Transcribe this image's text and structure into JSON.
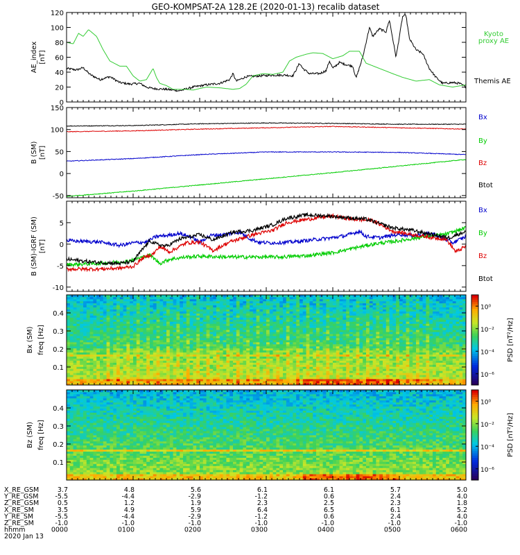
{
  "title": "GEO-KOMPSAT-2A 128.2E (2020-01-13) recalib dataset",
  "colors": {
    "black": "#000000",
    "blue": "#0000cc",
    "green": "#00cc00",
    "red": "#dd0000",
    "kyoto": "#33cc33"
  },
  "chart_data": [
    {
      "id": "ae",
      "type": "line",
      "ylabel": [
        "AE_index",
        "[nT]"
      ],
      "ylim": [
        0,
        120
      ],
      "yticks": [
        "0",
        "20",
        "40",
        "60",
        "80",
        "100",
        "120"
      ],
      "x_range_hours": [
        0,
        6
      ],
      "series": [
        {
          "name": "Themis AE",
          "color": "#000000",
          "points": [
            [
              0,
              45
            ],
            [
              0.15,
              43
            ],
            [
              0.25,
              46
            ],
            [
              0.35,
              37
            ],
            [
              0.5,
              30
            ],
            [
              0.65,
              34
            ],
            [
              0.8,
              26
            ],
            [
              0.95,
              24
            ],
            [
              1.1,
              25
            ],
            [
              1.2,
              20
            ],
            [
              1.3,
              18
            ],
            [
              1.5,
              17
            ],
            [
              1.7,
              15
            ],
            [
              1.9,
              20
            ],
            [
              2.1,
              23
            ],
            [
              2.3,
              25
            ],
            [
              2.45,
              30
            ],
            [
              2.5,
              38
            ],
            [
              2.55,
              28
            ],
            [
              2.7,
              34
            ],
            [
              2.9,
              35
            ],
            [
              3.1,
              36
            ],
            [
              3.3,
              36
            ],
            [
              3.4,
              35
            ],
            [
              3.5,
              52
            ],
            [
              3.55,
              45
            ],
            [
              3.65,
              38
            ],
            [
              3.8,
              38
            ],
            [
              3.9,
              42
            ],
            [
              3.95,
              55
            ],
            [
              4.0,
              45
            ],
            [
              4.1,
              53
            ],
            [
              4.2,
              50
            ],
            [
              4.3,
              48
            ],
            [
              4.35,
              32
            ],
            [
              4.45,
              60
            ],
            [
              4.55,
              100
            ],
            [
              4.6,
              88
            ],
            [
              4.7,
              98
            ],
            [
              4.8,
              94
            ],
            [
              4.85,
              110
            ],
            [
              4.95,
              60
            ],
            [
              5.05,
              115
            ],
            [
              5.1,
              116
            ],
            [
              5.15,
              85
            ],
            [
              5.25,
              70
            ],
            [
              5.35,
              65
            ],
            [
              5.45,
              45
            ],
            [
              5.55,
              33
            ],
            [
              5.65,
              25
            ],
            [
              5.8,
              26
            ],
            [
              5.9,
              25
            ],
            [
              6.0,
              20
            ]
          ]
        },
        {
          "name": "Kyoto proxy AE",
          "color": "#33cc33",
          "points": [
            [
              0,
              80
            ],
            [
              0.1,
              78
            ],
            [
              0.18,
              92
            ],
            [
              0.25,
              88
            ],
            [
              0.33,
              97
            ],
            [
              0.45,
              88
            ],
            [
              0.55,
              70
            ],
            [
              0.65,
              55
            ],
            [
              0.8,
              48
            ],
            [
              0.9,
              48
            ],
            [
              1.0,
              35
            ],
            [
              1.1,
              28
            ],
            [
              1.2,
              30
            ],
            [
              1.3,
              45
            ],
            [
              1.35,
              33
            ],
            [
              1.4,
              25
            ],
            [
              1.5,
              22
            ],
            [
              1.6,
              17
            ],
            [
              1.8,
              17
            ],
            [
              1.9,
              16
            ],
            [
              2.1,
              20
            ],
            [
              2.3,
              19
            ],
            [
              2.5,
              17
            ],
            [
              2.6,
              18
            ],
            [
              2.7,
              24
            ],
            [
              2.8,
              35
            ],
            [
              2.95,
              38
            ],
            [
              3.1,
              37
            ],
            [
              3.25,
              40
            ],
            [
              3.35,
              55
            ],
            [
              3.45,
              60
            ],
            [
              3.6,
              64
            ],
            [
              3.7,
              66
            ],
            [
              3.85,
              65
            ],
            [
              4.0,
              58
            ],
            [
              4.15,
              62
            ],
            [
              4.25,
              68
            ],
            [
              4.4,
              68
            ],
            [
              4.5,
              52
            ],
            [
              4.7,
              45
            ],
            [
              4.9,
              38
            ],
            [
              5.05,
              33
            ],
            [
              5.25,
              28
            ],
            [
              5.45,
              30
            ],
            [
              5.6,
              23
            ],
            [
              5.8,
              20
            ],
            [
              6.0,
              23
            ]
          ]
        }
      ],
      "legend": [
        "Kyoto",
        "proxy AE",
        "Themis AE"
      ]
    },
    {
      "id": "btot",
      "type": "line",
      "ylabel": [
        "B (SM)",
        "[nT]"
      ],
      "ylim": [
        -55,
        150
      ],
      "yticks": [
        "-50",
        "0",
        "50",
        "100",
        "150"
      ],
      "x_range_hours": [
        0,
        6
      ],
      "series": [
        {
          "name": "Btot",
          "color": "#000000",
          "points": [
            [
              0,
              108
            ],
            [
              1,
              109
            ],
            [
              2,
              113
            ],
            [
              3,
              115
            ],
            [
              4,
              114
            ],
            [
              5,
              112
            ],
            [
              6,
              112
            ]
          ]
        },
        {
          "name": "Bz",
          "color": "#dd0000",
          "points": [
            [
              0,
              95
            ],
            [
              1,
              97
            ],
            [
              2,
              101
            ],
            [
              3,
              104
            ],
            [
              4,
              107
            ],
            [
              5,
              104
            ],
            [
              6,
              101
            ]
          ]
        },
        {
          "name": "Bx",
          "color": "#0000cc",
          "points": [
            [
              0,
              28
            ],
            [
              1,
              34
            ],
            [
              2,
              43
            ],
            [
              3,
              49
            ],
            [
              4,
              49
            ],
            [
              5,
              48
            ],
            [
              6,
              43
            ]
          ]
        },
        {
          "name": "By",
          "color": "#00cc00",
          "points": [
            [
              0,
              -52
            ],
            [
              1,
              -40
            ],
            [
              2,
              -26
            ],
            [
              3,
              -12
            ],
            [
              4,
              2
            ],
            [
              5,
              17
            ],
            [
              6,
              32
            ]
          ]
        }
      ],
      "legend": [
        "Bx",
        "By",
        "Bz",
        "Btot"
      ]
    },
    {
      "id": "digrf",
      "type": "line",
      "ylabel": [
        "B (SM)-IGRF (SM)",
        "[nT]"
      ],
      "ylim": [
        -11,
        10
      ],
      "yticks": [
        "-10",
        "-5",
        "0",
        "5"
      ],
      "x_range_hours": [
        0,
        6
      ],
      "series": [
        {
          "name": "Bx",
          "color": "#0000cc",
          "points": [
            [
              0,
              0.8
            ],
            [
              0.5,
              0.5
            ],
            [
              0.8,
              -0.3
            ],
            [
              1.0,
              0.3
            ],
            [
              1.2,
              0.5
            ],
            [
              1.35,
              1.8
            ],
            [
              1.5,
              2.0
            ],
            [
              1.7,
              2.5
            ],
            [
              1.9,
              1.5
            ],
            [
              2.0,
              0.4
            ],
            [
              2.15,
              2.0
            ],
            [
              2.4,
              2.3
            ],
            [
              2.6,
              2.8
            ],
            [
              2.75,
              1.3
            ],
            [
              2.9,
              0.4
            ],
            [
              3.1,
              0.3
            ],
            [
              3.4,
              0.5
            ],
            [
              3.7,
              1.0
            ],
            [
              4.0,
              1.5
            ],
            [
              4.2,
              2.0
            ],
            [
              4.4,
              3.0
            ],
            [
              4.5,
              1.8
            ],
            [
              4.7,
              1.5
            ],
            [
              5.0,
              2.3
            ],
            [
              5.2,
              2.0
            ],
            [
              5.5,
              2.5
            ],
            [
              5.8,
              0.3
            ],
            [
              6.0,
              1.8
            ]
          ]
        },
        {
          "name": "By",
          "color": "#00cc00",
          "points": [
            [
              0,
              -4.8
            ],
            [
              0.5,
              -4.5
            ],
            [
              0.9,
              -4.0
            ],
            [
              1.1,
              -3.2
            ],
            [
              1.25,
              -2.5
            ],
            [
              1.4,
              -4.5
            ],
            [
              1.55,
              -3.5
            ],
            [
              1.8,
              -3.0
            ],
            [
              2.0,
              -2.8
            ],
            [
              2.4,
              -3.0
            ],
            [
              2.8,
              -3.0
            ],
            [
              3.2,
              -3.0
            ],
            [
              3.6,
              -2.7
            ],
            [
              4.0,
              -2.0
            ],
            [
              4.3,
              -1.0
            ],
            [
              4.6,
              0.0
            ],
            [
              5.0,
              0.8
            ],
            [
              5.4,
              1.8
            ],
            [
              5.7,
              2.3
            ],
            [
              6.0,
              3.8
            ]
          ]
        },
        {
          "name": "Bz",
          "color": "#dd0000",
          "points": [
            [
              0,
              -5.8
            ],
            [
              0.5,
              -5.8
            ],
            [
              0.8,
              -5.6
            ],
            [
              1.0,
              -5.2
            ],
            [
              1.15,
              -3.2
            ],
            [
              1.3,
              -2.3
            ],
            [
              1.4,
              -0.6
            ],
            [
              1.55,
              -1.8
            ],
            [
              1.8,
              0.3
            ],
            [
              2.0,
              0.5
            ],
            [
              2.2,
              -1.5
            ],
            [
              2.45,
              0.5
            ],
            [
              2.8,
              2.2
            ],
            [
              3.1,
              3.2
            ],
            [
              3.3,
              5.0
            ],
            [
              3.5,
              5.5
            ],
            [
              3.8,
              6.2
            ],
            [
              4.0,
              6.5
            ],
            [
              4.3,
              5.8
            ],
            [
              4.6,
              5.5
            ],
            [
              4.9,
              3.0
            ],
            [
              5.2,
              2.2
            ],
            [
              5.5,
              1.5
            ],
            [
              5.7,
              1.2
            ],
            [
              5.85,
              -1.8
            ],
            [
              6.0,
              -0.5
            ]
          ]
        },
        {
          "name": "Btot",
          "color": "#000000",
          "points": [
            [
              0,
              -3.5
            ],
            [
              0.4,
              -4.2
            ],
            [
              0.8,
              -4.5
            ],
            [
              1.0,
              -4.0
            ],
            [
              1.1,
              -2.0
            ],
            [
              1.25,
              0.8
            ],
            [
              1.35,
              0.0
            ],
            [
              1.5,
              -0.5
            ],
            [
              1.7,
              1.2
            ],
            [
              2.0,
              2.2
            ],
            [
              2.2,
              1.0
            ],
            [
              2.5,
              2.8
            ],
            [
              2.8,
              3.2
            ],
            [
              3.1,
              4.5
            ],
            [
              3.3,
              6.0
            ],
            [
              3.6,
              6.8
            ],
            [
              3.9,
              6.6
            ],
            [
              4.2,
              6.2
            ],
            [
              4.5,
              5.8
            ],
            [
              4.7,
              4.8
            ],
            [
              4.9,
              3.8
            ],
            [
              5.2,
              3.2
            ],
            [
              5.5,
              2.2
            ],
            [
              5.75,
              1.5
            ],
            [
              6.0,
              3.0
            ]
          ]
        }
      ],
      "legend": [
        "Bx",
        "By",
        "Bz",
        "Btot"
      ]
    },
    {
      "id": "spec-bx",
      "type": "heatmap",
      "ylabel": [
        "Bx (SM)",
        "freq [Hz]"
      ],
      "ylim": [
        0,
        0.5
      ],
      "yticks": [
        "0.1",
        "0.2",
        "0.3",
        "0.4"
      ],
      "colorbar": {
        "label": "PSD [nT²/Hz]",
        "ticks": [
          "10⁰",
          "10⁻²",
          "10⁻⁴",
          "10⁻⁶"
        ],
        "range_log10": [
          -7,
          1
        ]
      },
      "x_range_hours": [
        0,
        6
      ]
    },
    {
      "id": "spec-bz",
      "type": "heatmap",
      "ylabel": [
        "Bz (SM)",
        "freq [Hz]"
      ],
      "ylim": [
        0,
        0.5
      ],
      "yticks": [
        "0.1",
        "0.2",
        "0.3",
        "0.4"
      ],
      "colorbar": {
        "label": "PSD [nT²/Hz]",
        "ticks": [
          "10⁰",
          "10⁻²",
          "10⁻⁴",
          "10⁻⁶"
        ],
        "range_log10": [
          -7,
          1
        ]
      },
      "x_range_hours": [
        0,
        6
      ]
    }
  ],
  "ephemeris": {
    "row_labels": [
      "X_RE_GSM",
      "Y_RE_GSM",
      "Z_RE_GSM",
      "X_RE_SM",
      "Y_RE_SM",
      "Z_RE_SM",
      "hhmm",
      "2020 Jan 13"
    ],
    "columns": [
      [
        "3.7",
        "-5.5",
        "0.5",
        "3.5",
        "-5.5",
        "-1.0",
        "0000"
      ],
      [
        "4.8",
        "-4.4",
        "1.2",
        "4.9",
        "-4.4",
        "-1.0",
        "0100"
      ],
      [
        "5.6",
        "-2.9",
        "1.9",
        "5.9",
        "-2.9",
        "-1.0",
        "0200"
      ],
      [
        "6.1",
        "-1.2",
        "2.3",
        "6.4",
        "-1.2",
        "-1.0",
        "0300"
      ],
      [
        "6.1",
        "0.6",
        "2.5",
        "6.5",
        "0.6",
        "-1.0",
        "0400"
      ],
      [
        "5.7",
        "2.4",
        "2.3",
        "6.1",
        "2.4",
        "-1.0",
        "0500"
      ],
      [
        "5.0",
        "4.0",
        "1.8",
        "5.2",
        "4.0",
        "-1.0",
        "0600"
      ]
    ]
  }
}
